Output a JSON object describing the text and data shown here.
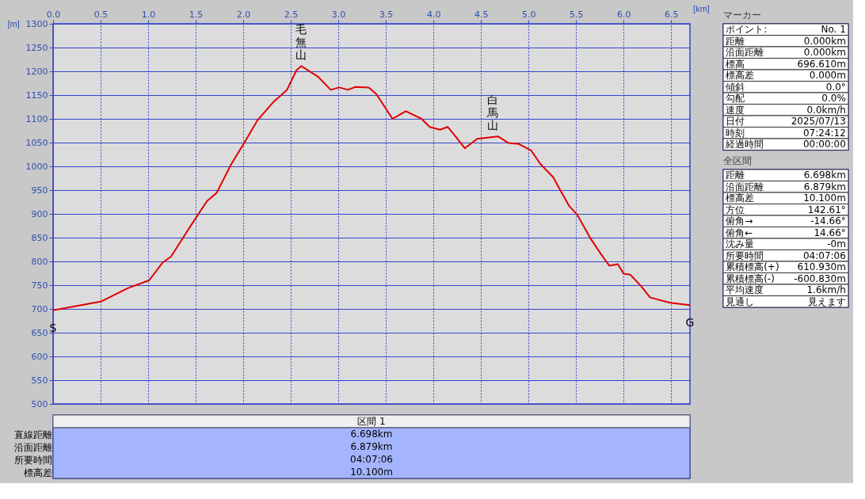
{
  "chart_data": [
    {
      "type": "line",
      "xlabel": "[km]",
      "ylabel": "[m]",
      "xlim": [
        0,
        6.698
      ],
      "ylim": [
        500,
        1300
      ],
      "xticks": [
        {
          "value": 0,
          "label": "0.0"
        },
        {
          "value": 0.5,
          "label": "0.5"
        },
        {
          "value": 1,
          "label": "1.0"
        },
        {
          "value": 1.5,
          "label": "1.5"
        },
        {
          "value": 2,
          "label": "2.0"
        },
        {
          "value": 2.5,
          "label": "2.5"
        },
        {
          "value": 3,
          "label": "3.0"
        },
        {
          "value": 3.5,
          "label": "3.5"
        },
        {
          "value": 4,
          "label": "4.0"
        },
        {
          "value": 4.5,
          "label": "4.5"
        },
        {
          "value": 5,
          "label": "5.0"
        },
        {
          "value": 5.5,
          "label": "5.5"
        },
        {
          "value": 6,
          "label": "6.0"
        },
        {
          "value": 6.5,
          "label": "6.5"
        }
      ],
      "yticks": [
        500,
        550,
        600,
        650,
        700,
        750,
        800,
        850,
        900,
        950,
        1000,
        1050,
        1100,
        1150,
        1200,
        1250,
        1300
      ],
      "grid": true,
      "marker": "none",
      "line_style": "solid",
      "series": [
        {
          "color": "#e00000",
          "x": [
            0,
            0.51,
            0.79,
            1.01,
            1.15,
            1.24,
            1.4,
            1.51,
            1.62,
            1.72,
            1.875,
            2.01,
            2.15,
            2.32,
            2.46,
            2.56,
            2.61,
            2.79,
            2.92,
            3.01,
            3.1,
            3.18,
            3.32,
            3.4,
            3.57,
            3.71,
            3.875,
            3.96,
            4.07,
            4.15,
            4.24,
            4.33,
            4.46,
            4.68,
            4.79,
            4.9,
            5.03,
            5.125,
            5.26,
            5.35,
            5.43,
            5.51,
            5.65,
            5.76,
            5.85,
            5.94,
            6.0,
            6.07,
            6.18,
            6.28,
            6.49,
            6.698
          ],
          "values": [
            697,
            716,
            744,
            760,
            797,
            810,
            860,
            894,
            927,
            944,
            1005,
            1049,
            1097,
            1136,
            1161,
            1202,
            1211,
            1188,
            1161,
            1166,
            1161,
            1167,
            1166,
            1152,
            1100,
            1116,
            1100,
            1083,
            1077,
            1083,
            1061,
            1038,
            1058,
            1063,
            1049,
            1047,
            1033,
            1005,
            977,
            944,
            916,
            899,
            849,
            816,
            791,
            794,
            774,
            772,
            749,
            724,
            713,
            708
          ]
        }
      ],
      "annotations": [
        {
          "text": "毛無山",
          "x": 2.61,
          "y": 1211
        },
        {
          "text": "白馬山",
          "x": 4.62,
          "y": 1063
        },
        {
          "text": "S",
          "x": 0,
          "y": 697
        },
        {
          "text": "G",
          "x": 6.698,
          "y": 708
        }
      ]
    },
    {
      "type": "other",
      "title": "区間 1",
      "annotations": [
        "直線距離",
        "6.698km",
        "沿面距離",
        "6.879km",
        "所要時間",
        "04:07:06",
        "標高差",
        "10.100m"
      ]
    },
    {
      "type": "other",
      "title": "マーカー",
      "annotations": [
        "ポイント:",
        "No. 1",
        "距離",
        "0.000km",
        "沿面距離",
        "0.000km",
        "標高",
        "696.610m",
        "標高差",
        "0.000m",
        "傾斜",
        "0.0°",
        "勾配",
        "0.0%",
        "速度",
        "0.0km/h",
        "日付",
        "2025/07/13",
        "時刻",
        "07:24:12",
        "経過時間",
        "00:00:00"
      ]
    },
    {
      "type": "other",
      "title": "全区間",
      "annotations": [
        "距離",
        "6.698km",
        "沿面距離",
        "6.879km",
        "標高差",
        "10.100m",
        "方位",
        "142.61°",
        "俯角→",
        "-14.66°",
        "俯角←",
        "14.66°",
        "沈み量",
        "-0m",
        "所要時間",
        "04:07:06",
        "累積標高(+)",
        "610.930m",
        "累積標高(-)",
        "-600.830m",
        "平均速度",
        "1.6km/h",
        "見通し",
        "見えます"
      ]
    }
  ]
}
